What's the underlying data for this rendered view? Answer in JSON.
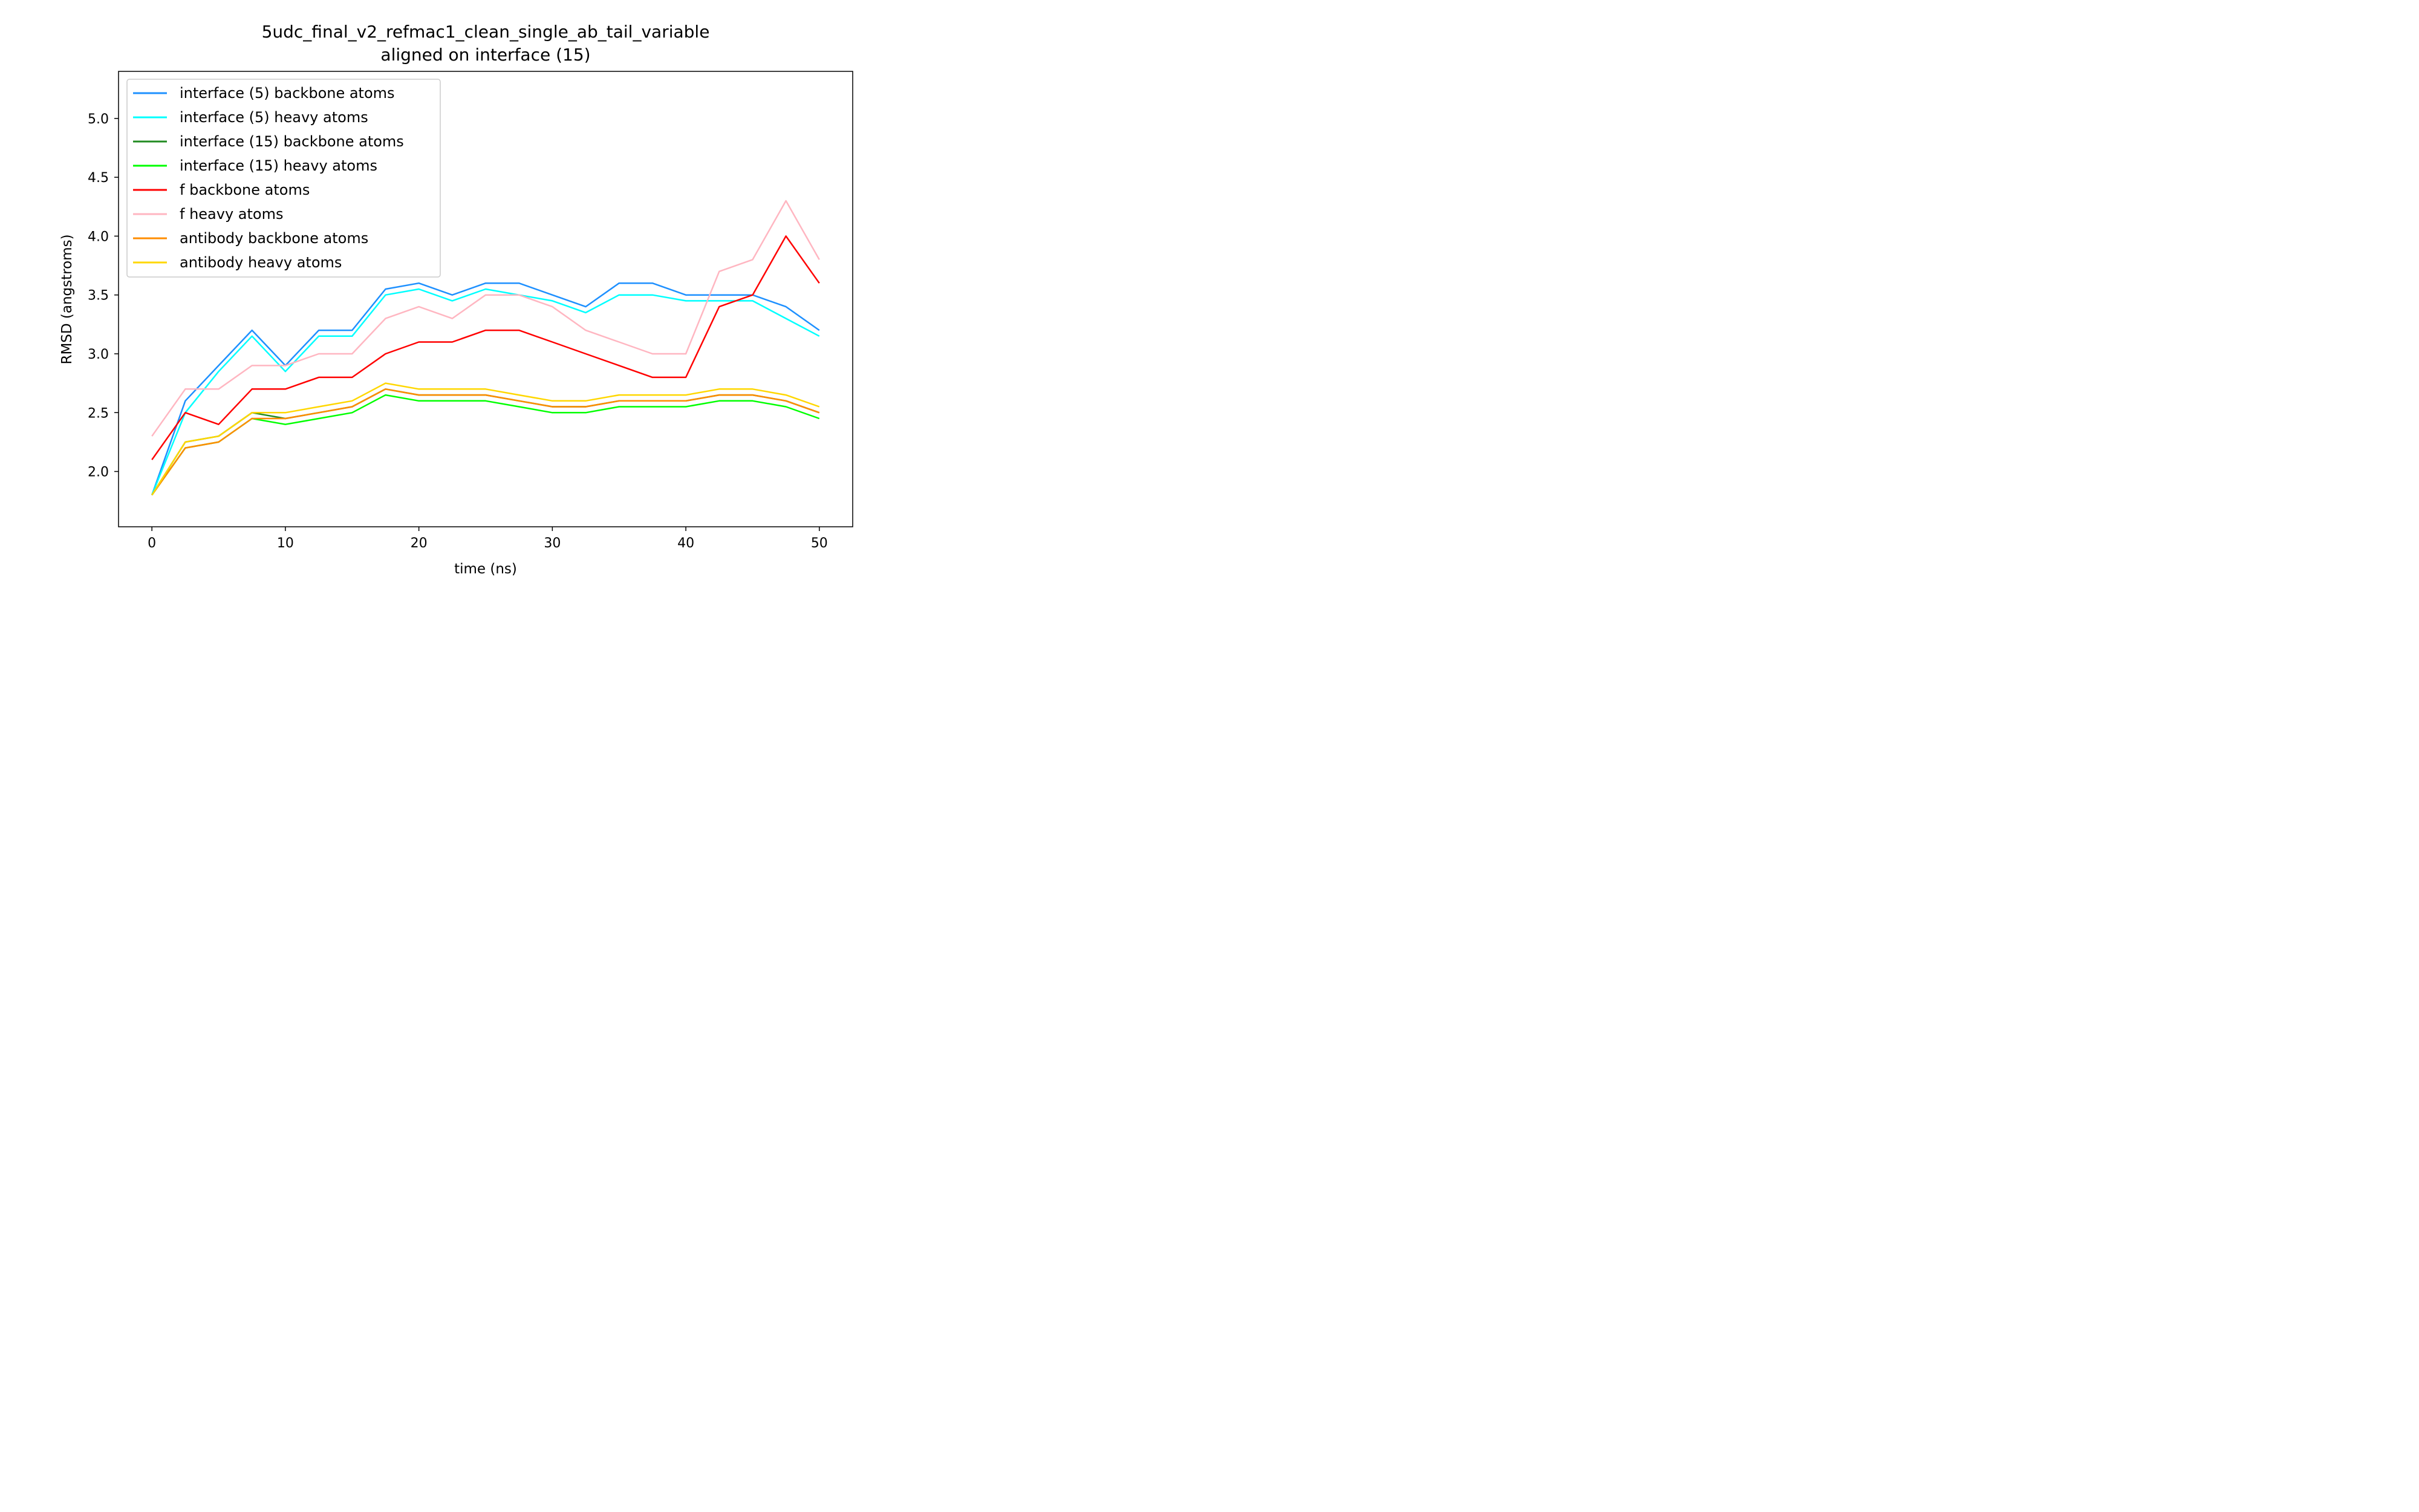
{
  "chart_data": {
    "type": "line",
    "title": "5udc_final_v2_refmac1_clean_single_ab_tail_variable",
    "subtitle": "aligned on interface (15)",
    "xlabel": "time (ns)",
    "ylabel": "RMSD (angstroms)",
    "xlim": [
      -2.5,
      52.5
    ],
    "ylim": [
      1.53,
      5.4
    ],
    "xticks": [
      0,
      10,
      20,
      30,
      40,
      50
    ],
    "yticks": [
      2.0,
      2.5,
      3.0,
      3.5,
      4.0,
      4.5,
      5.0
    ],
    "xtick_labels": [
      "0",
      "10",
      "20",
      "30",
      "40",
      "50"
    ],
    "ytick_labels": [
      "2.0",
      "2.5",
      "3.0",
      "3.5",
      "4.0",
      "4.5",
      "5.0"
    ],
    "legend_position": "upper-left",
    "grid": false,
    "x": [
      0,
      2.5,
      5,
      7.5,
      10,
      12.5,
      15,
      17.5,
      20,
      22.5,
      25,
      27.5,
      30,
      32.5,
      35,
      37.5,
      40,
      42.5,
      45,
      47.5,
      50
    ],
    "series": [
      {
        "name": "interface (5) backbone atoms",
        "color": "#1e90ff",
        "values": [
          1.8,
          2.6,
          2.9,
          3.2,
          2.9,
          3.2,
          3.2,
          3.55,
          3.6,
          3.5,
          3.6,
          3.6,
          3.5,
          3.4,
          3.6,
          3.6,
          3.5,
          3.5,
          3.5,
          3.4,
          3.2
        ]
      },
      {
        "name": "interface (5) heavy atoms",
        "color": "#00ffff",
        "values": [
          1.8,
          2.5,
          2.85,
          3.15,
          2.85,
          3.15,
          3.15,
          3.5,
          3.55,
          3.45,
          3.55,
          3.5,
          3.45,
          3.35,
          3.5,
          3.5,
          3.45,
          3.45,
          3.45,
          3.3,
          3.15
        ]
      },
      {
        "name": "interface (15) backbone atoms",
        "color": "#228b22",
        "values": [
          1.8,
          2.25,
          2.3,
          2.5,
          2.45,
          2.5,
          2.55,
          2.7,
          2.65,
          2.65,
          2.65,
          2.6,
          2.55,
          2.55,
          2.6,
          2.6,
          2.6,
          2.65,
          2.65,
          2.6,
          2.5
        ]
      },
      {
        "name": "interface (15) heavy atoms",
        "color": "#00ff00",
        "values": [
          1.8,
          2.2,
          2.25,
          2.45,
          2.4,
          2.45,
          2.5,
          2.65,
          2.6,
          2.6,
          2.6,
          2.55,
          2.5,
          2.5,
          2.55,
          2.55,
          2.55,
          2.6,
          2.6,
          2.55,
          2.45
        ]
      },
      {
        "name": "f backbone atoms",
        "color": "#ff0000",
        "values": [
          2.1,
          2.5,
          2.4,
          2.7,
          2.7,
          2.8,
          2.8,
          3.0,
          3.1,
          3.1,
          3.2,
          3.2,
          3.1,
          3.0,
          2.9,
          2.8,
          2.8,
          3.4,
          3.5,
          4.0,
          3.6
        ]
      },
      {
        "name": "f heavy atoms",
        "color": "#ffb6c1",
        "values": [
          2.3,
          2.7,
          2.7,
          2.9,
          2.9,
          3.0,
          3.0,
          3.3,
          3.4,
          3.3,
          3.5,
          3.5,
          3.4,
          3.2,
          3.1,
          3.0,
          3.0,
          3.7,
          3.8,
          4.3,
          3.8
        ]
      },
      {
        "name": "antibody backbone atoms",
        "color": "#ff8c00",
        "values": [
          1.8,
          2.2,
          2.25,
          2.45,
          2.45,
          2.5,
          2.55,
          2.7,
          2.65,
          2.65,
          2.65,
          2.6,
          2.55,
          2.55,
          2.6,
          2.6,
          2.6,
          2.65,
          2.65,
          2.6,
          2.5
        ]
      },
      {
        "name": "antibody heavy atoms",
        "color": "#ffd700",
        "values": [
          1.8,
          2.25,
          2.3,
          2.5,
          2.5,
          2.55,
          2.6,
          2.75,
          2.7,
          2.7,
          2.7,
          2.65,
          2.6,
          2.6,
          2.65,
          2.65,
          2.65,
          2.7,
          2.7,
          2.65,
          2.55
        ]
      }
    ]
  }
}
